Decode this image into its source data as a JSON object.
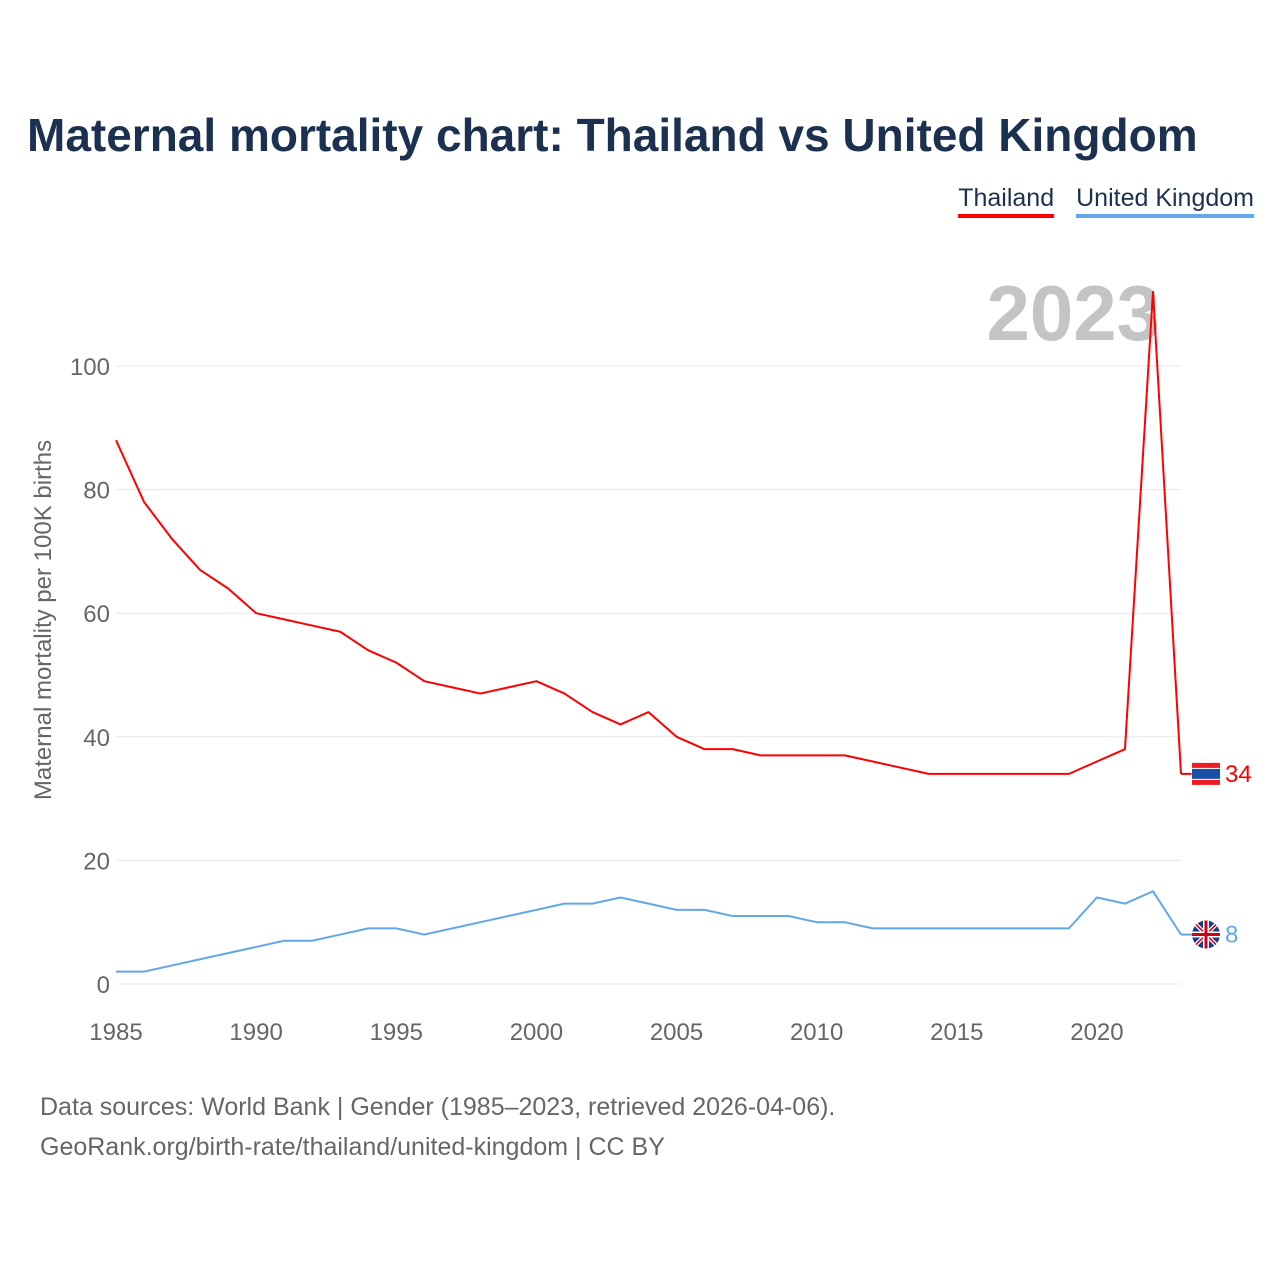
{
  "chart_data": {
    "type": "line",
    "title": "Maternal mortality chart: Thailand vs United Kingdom",
    "xlabel": "",
    "ylabel": "Maternal mortality per 100K births",
    "xlim": [
      1985,
      2023
    ],
    "ylim": [
      0,
      100
    ],
    "yticks": [
      0,
      20,
      40,
      60,
      80,
      100
    ],
    "xticks": [
      1985,
      1990,
      1995,
      2000,
      2005,
      2010,
      2015,
      2020
    ],
    "year_label": "2023",
    "grid": true,
    "legend_position": "top-right",
    "x": [
      1985,
      1986,
      1987,
      1988,
      1989,
      1990,
      1991,
      1992,
      1993,
      1994,
      1995,
      1996,
      1997,
      1998,
      1999,
      2000,
      2001,
      2002,
      2003,
      2004,
      2005,
      2006,
      2007,
      2008,
      2009,
      2010,
      2011,
      2012,
      2013,
      2014,
      2015,
      2016,
      2017,
      2018,
      2019,
      2020,
      2021,
      2022,
      2023
    ],
    "series": [
      {
        "name": "Thailand",
        "color": "#ff0000",
        "end_label": "34",
        "values": [
          88,
          78,
          72,
          67,
          64,
          60,
          59,
          58,
          57,
          54,
          52,
          49,
          48,
          47,
          48,
          49,
          47,
          44,
          42,
          44,
          40,
          38,
          38,
          37,
          37,
          37,
          37,
          36,
          35,
          34,
          34,
          34,
          34,
          34,
          34,
          36,
          38,
          112,
          34
        ]
      },
      {
        "name": "United Kingdom",
        "color": "#62a8e8",
        "end_label": "8",
        "values": [
          2,
          2,
          3,
          4,
          5,
          6,
          7,
          7,
          8,
          9,
          9,
          8,
          9,
          10,
          11,
          12,
          13,
          13,
          14,
          13,
          12,
          12,
          11,
          11,
          11,
          10,
          10,
          9,
          9,
          9,
          9,
          9,
          9,
          9,
          9,
          14,
          13,
          15,
          8
        ]
      }
    ]
  },
  "footer": {
    "line1": "Data sources: World Bank | Gender (1985–2023, retrieved 2026-04-06).",
    "line2": "GeoRank.org/birth-rate/thailand/united-kingdom | CC BY"
  }
}
